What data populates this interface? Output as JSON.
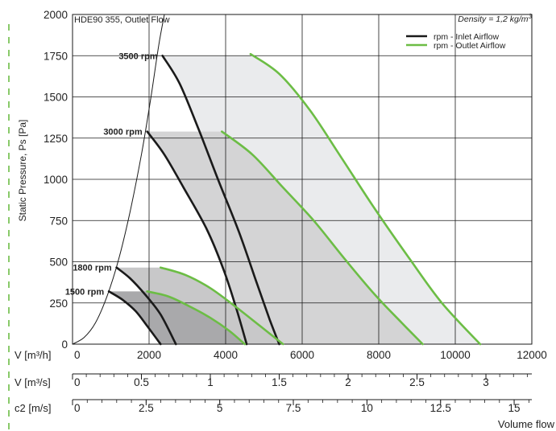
{
  "chart_data": {
    "type": "line",
    "title": "HDE90 355, Outlet Flow",
    "density": {
      "prefix": "Density = 1,2 kg/m",
      "sup": "3"
    },
    "ylabel": "Static Pressure, Ps [Pa]",
    "xlabel": "Volume flow",
    "ylim": [
      0,
      2000
    ],
    "xlim": [
      0,
      12000
    ],
    "grid": true,
    "legend": {
      "placement": "top-right",
      "entries": [
        {
          "label": "rpm -  Inlet Airflow",
          "color": "#1a1a1a"
        },
        {
          "label": "rpm -  Outlet Airflow",
          "color": "#6cbd45"
        }
      ]
    },
    "y_ticks": [
      0,
      250,
      500,
      750,
      1000,
      1250,
      1500,
      1750,
      2000
    ],
    "x_axes": [
      {
        "unit": "V [m³/h]",
        "min": 0,
        "max": 12000,
        "ticks": [
          "0",
          "2000",
          "4000",
          "6000",
          "8000",
          "10000",
          "12000"
        ]
      },
      {
        "unit": "V [m³/s]",
        "min": 0,
        "max": 3.333,
        "ticks": [
          "0",
          "0.5",
          "1",
          "1.5",
          "2",
          "2.5",
          "3"
        ]
      },
      {
        "unit": "c2 [m/s]",
        "min": 0,
        "max": 15.6,
        "ticks": [
          "0",
          "2.5",
          "5",
          "7.5",
          "10",
          "12.5",
          "15"
        ]
      }
    ],
    "system_curve": [
      [
        0,
        0
      ],
      [
        300,
        40
      ],
      [
        600,
        130
      ],
      [
        900,
        290
      ],
      [
        1200,
        510
      ],
      [
        1500,
        800
      ],
      [
        1800,
        1150
      ],
      [
        2050,
        1500
      ],
      [
        2250,
        1810
      ],
      [
        2400,
        2000
      ]
    ],
    "series": [
      {
        "rpm_label": "3500 rpm",
        "shade": "#eaebed",
        "inlet": [
          [
            2350,
            1750
          ],
          [
            2800,
            1580
          ],
          [
            3300,
            1300
          ],
          [
            3800,
            1000
          ],
          [
            4350,
            680
          ],
          [
            4800,
            380
          ],
          [
            5150,
            150
          ],
          [
            5400,
            0
          ]
        ],
        "outlet": [
          [
            4650,
            1760
          ],
          [
            5400,
            1640
          ],
          [
            6200,
            1420
          ],
          [
            7000,
            1140
          ],
          [
            7900,
            820
          ],
          [
            8800,
            520
          ],
          [
            9650,
            250
          ],
          [
            10650,
            0
          ]
        ]
      },
      {
        "rpm_label": "3000 rpm",
        "shade": "#d4d4d5",
        "inlet": [
          [
            1950,
            1290
          ],
          [
            2400,
            1150
          ],
          [
            2900,
            950
          ],
          [
            3500,
            700
          ],
          [
            3950,
            450
          ],
          [
            4300,
            200
          ],
          [
            4550,
            0
          ]
        ],
        "outlet": [
          [
            3900,
            1290
          ],
          [
            4700,
            1150
          ],
          [
            5500,
            950
          ],
          [
            6300,
            750
          ],
          [
            7100,
            520
          ],
          [
            7900,
            300
          ],
          [
            8600,
            130
          ],
          [
            9150,
            0
          ]
        ]
      },
      {
        "rpm_label": "1800 rpm",
        "shade": "#c8c8c9",
        "inlet": [
          [
            1150,
            465
          ],
          [
            1500,
            400
          ],
          [
            1900,
            300
          ],
          [
            2300,
            180
          ],
          [
            2700,
            0
          ]
        ],
        "outlet": [
          [
            2300,
            465
          ],
          [
            2950,
            420
          ],
          [
            3600,
            340
          ],
          [
            4300,
            220
          ],
          [
            4900,
            110
          ],
          [
            5500,
            0
          ]
        ]
      },
      {
        "rpm_label": "1500 rpm",
        "shade": "#a9a9ab",
        "inlet": [
          [
            950,
            320
          ],
          [
            1300,
            270
          ],
          [
            1650,
            200
          ],
          [
            1950,
            110
          ],
          [
            2300,
            0
          ]
        ],
        "outlet": [
          [
            1950,
            320
          ],
          [
            2500,
            290
          ],
          [
            3050,
            230
          ],
          [
            3600,
            160
          ],
          [
            4100,
            80
          ],
          [
            4500,
            0
          ]
        ]
      }
    ]
  }
}
